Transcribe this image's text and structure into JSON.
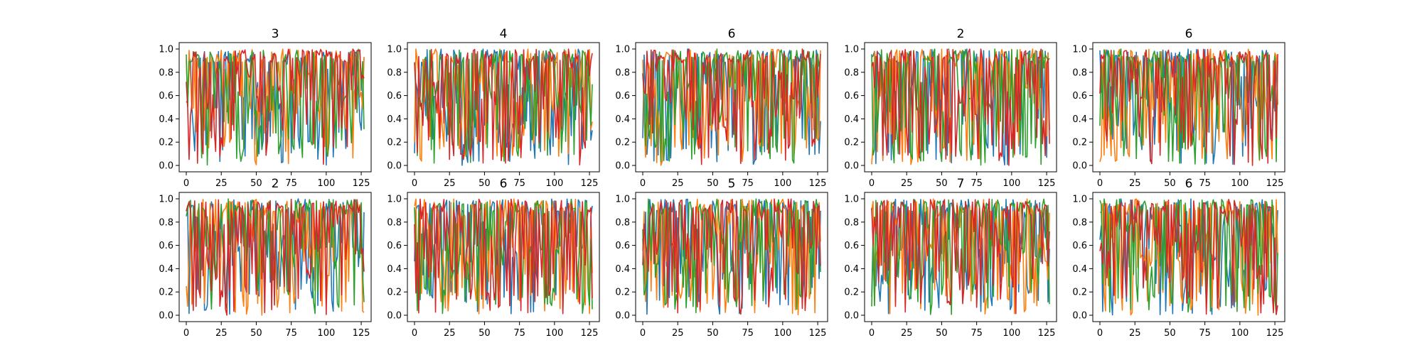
{
  "figure": {
    "series_colors": [
      "#1f77b4",
      "#ff7f0e",
      "#2ca02c",
      "#d62728"
    ]
  },
  "chart_data": [
    {
      "type": "line",
      "title": "3",
      "xlim": [
        0,
        127
      ],
      "ylim": [
        0.0,
        1.0
      ],
      "xticks": [
        "0",
        "25",
        "50",
        "75",
        "100",
        "125"
      ],
      "yticks": [
        "0.0",
        "0.2",
        "0.4",
        "0.6",
        "0.8",
        "1.0"
      ],
      "grid": false,
      "series_count": 4,
      "points_per_series": 128
    },
    {
      "type": "line",
      "title": "4",
      "xlim": [
        0,
        127
      ],
      "ylim": [
        0.0,
        1.0
      ],
      "xticks": [
        "0",
        "25",
        "50",
        "75",
        "100",
        "125"
      ],
      "yticks": [
        "0.0",
        "0.2",
        "0.4",
        "0.6",
        "0.8",
        "1.0"
      ],
      "grid": false,
      "series_count": 4,
      "points_per_series": 128
    },
    {
      "type": "line",
      "title": "6",
      "xlim": [
        0,
        127
      ],
      "ylim": [
        0.0,
        1.0
      ],
      "xticks": [
        "0",
        "25",
        "50",
        "75",
        "100",
        "125"
      ],
      "yticks": [
        "0.0",
        "0.2",
        "0.4",
        "0.6",
        "0.8",
        "1.0"
      ],
      "grid": false,
      "series_count": 4,
      "points_per_series": 128
    },
    {
      "type": "line",
      "title": "2",
      "xlim": [
        0,
        127
      ],
      "ylim": [
        0.0,
        1.0
      ],
      "xticks": [
        "0",
        "25",
        "50",
        "75",
        "100",
        "125"
      ],
      "yticks": [
        "0.0",
        "0.2",
        "0.4",
        "0.6",
        "0.8",
        "1.0"
      ],
      "grid": false,
      "series_count": 4,
      "points_per_series": 128
    },
    {
      "type": "line",
      "title": "6",
      "xlim": [
        0,
        127
      ],
      "ylim": [
        0.0,
        1.0
      ],
      "xticks": [
        "0",
        "25",
        "50",
        "75",
        "100",
        "125"
      ],
      "yticks": [
        "0.0",
        "0.2",
        "0.4",
        "0.6",
        "0.8",
        "1.0"
      ],
      "grid": false,
      "series_count": 4,
      "points_per_series": 128
    },
    {
      "type": "line",
      "title": "2",
      "xlim": [
        0,
        127
      ],
      "ylim": [
        0.0,
        1.0
      ],
      "xticks": [
        "0",
        "25",
        "50",
        "75",
        "100",
        "125"
      ],
      "yticks": [
        "0.0",
        "0.2",
        "0.4",
        "0.6",
        "0.8",
        "1.0"
      ],
      "grid": false,
      "series_count": 4,
      "points_per_series": 128
    },
    {
      "type": "line",
      "title": "6",
      "xlim": [
        0,
        127
      ],
      "ylim": [
        0.0,
        1.0
      ],
      "xticks": [
        "0",
        "25",
        "50",
        "75",
        "100",
        "125"
      ],
      "yticks": [
        "0.0",
        "0.2",
        "0.4",
        "0.6",
        "0.8",
        "1.0"
      ],
      "grid": false,
      "series_count": 4,
      "points_per_series": 128
    },
    {
      "type": "line",
      "title": "5",
      "xlim": [
        0,
        127
      ],
      "ylim": [
        0.0,
        1.0
      ],
      "xticks": [
        "0",
        "25",
        "50",
        "75",
        "100",
        "125"
      ],
      "yticks": [
        "0.0",
        "0.2",
        "0.4",
        "0.6",
        "0.8",
        "1.0"
      ],
      "grid": false,
      "series_count": 4,
      "points_per_series": 128
    },
    {
      "type": "line",
      "title": "7",
      "xlim": [
        0,
        127
      ],
      "ylim": [
        0.0,
        1.0
      ],
      "xticks": [
        "0",
        "25",
        "50",
        "75",
        "100",
        "125"
      ],
      "yticks": [
        "0.0",
        "0.2",
        "0.4",
        "0.6",
        "0.8",
        "1.0"
      ],
      "grid": false,
      "series_count": 4,
      "points_per_series": 128
    },
    {
      "type": "line",
      "title": "6",
      "xlim": [
        0,
        127
      ],
      "ylim": [
        0.0,
        1.0
      ],
      "xticks": [
        "0",
        "25",
        "50",
        "75",
        "100",
        "125"
      ],
      "yticks": [
        "0.0",
        "0.2",
        "0.4",
        "0.6",
        "0.8",
        "1.0"
      ],
      "grid": false,
      "series_count": 4,
      "points_per_series": 128
    }
  ]
}
